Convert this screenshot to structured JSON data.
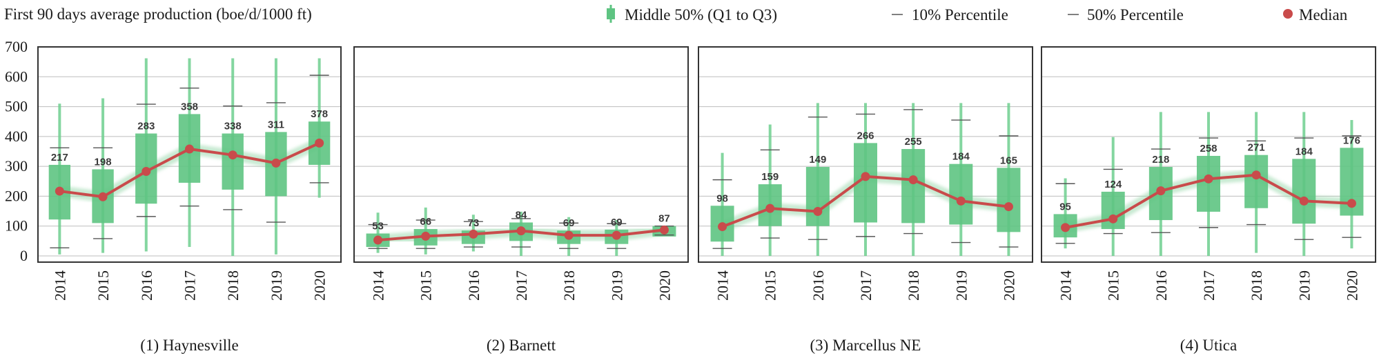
{
  "chart_data": {
    "type": "box",
    "title": "First 90 days average production (boe/d/1000 ft)",
    "ylim": [
      0,
      700
    ],
    "yticks": [
      0,
      100,
      200,
      300,
      400,
      500,
      600,
      700
    ],
    "grid": true,
    "legend_position": "top",
    "colors": {
      "box": "#5ec482",
      "whisker": "#6fcf8f",
      "median_line": "#c94b4b",
      "grid": "#bdbdbd",
      "tick": "#555555"
    },
    "legend": [
      {
        "label": "Middle 50% (Q1 to Q3)",
        "marker": "box-icon"
      },
      {
        "label": "10% Percentile",
        "marker": "dash-icon"
      },
      {
        "label": "50% Percentile",
        "marker": "dash-icon"
      },
      {
        "label": "Median",
        "marker": "dot-icon"
      }
    ],
    "panels": [
      {
        "title": "(1) Haynesville",
        "categories": [
          "2014",
          "2015",
          "2016",
          "2017",
          "2018",
          "2019",
          "2020"
        ],
        "q1": [
          122,
          110,
          175,
          245,
          222,
          200,
          305
        ],
        "q3": [
          305,
          290,
          410,
          475,
          410,
          415,
          450
        ],
        "min": [
          5,
          10,
          15,
          30,
          0,
          5,
          195
        ],
        "max": [
          510,
          528,
          662,
          662,
          662,
          662,
          662
        ],
        "p10": [
          27,
          58,
          132,
          167,
          155,
          113,
          245
        ],
        "p50": [
          362,
          362,
          508,
          562,
          502,
          513,
          605
        ],
        "median": [
          217,
          198,
          283,
          358,
          338,
          311,
          378
        ],
        "labels": [
          "217",
          "198",
          "283",
          "358",
          "338",
          "311",
          "378"
        ]
      },
      {
        "title": "(2) Barnett",
        "categories": [
          "2014",
          "2015",
          "2016",
          "2017",
          "2018",
          "2019",
          "2020"
        ],
        "q1": [
          30,
          35,
          40,
          50,
          40,
          40,
          65
        ],
        "q3": [
          75,
          90,
          85,
          112,
          85,
          88,
          100
        ],
        "min": [
          10,
          5,
          15,
          0,
          0,
          0,
          70
        ],
        "max": [
          145,
          162,
          138,
          148,
          130,
          120,
          100
        ],
        "p10": [
          25,
          25,
          30,
          30,
          25,
          25,
          70
        ],
        "p50": [
          105,
          120,
          115,
          125,
          110,
          108,
          100
        ],
        "median": [
          53,
          66,
          73,
          84,
          69,
          69,
          87
        ],
        "labels": [
          "53",
          "66",
          "73",
          "84",
          "69",
          "69",
          "87"
        ]
      },
      {
        "title": "(3) Marcellus NE",
        "categories": [
          "2014",
          "2015",
          "2016",
          "2017",
          "2018",
          "2019",
          "2020"
        ],
        "q1": [
          48,
          100,
          100,
          112,
          110,
          105,
          80
        ],
        "q3": [
          168,
          240,
          298,
          378,
          358,
          308,
          295
        ],
        "min": [
          0,
          0,
          0,
          0,
          0,
          0,
          0
        ],
        "max": [
          345,
          440,
          512,
          512,
          512,
          512,
          512
        ],
        "p10": [
          25,
          60,
          55,
          65,
          75,
          45,
          30
        ],
        "p50": [
          255,
          355,
          465,
          475,
          490,
          455,
          402
        ],
        "median": [
          98,
          159,
          149,
          266,
          255,
          184,
          165
        ],
        "labels": [
          "98",
          "159",
          "149",
          "266",
          "255",
          "184",
          "165"
        ]
      },
      {
        "title": "(4) Utica",
        "categories": [
          "2014",
          "2015",
          "2016",
          "2017",
          "2018",
          "2019",
          "2020"
        ],
        "q1": [
          62,
          90,
          120,
          148,
          160,
          108,
          135
        ],
        "q3": [
          140,
          215,
          298,
          335,
          338,
          325,
          362
        ],
        "min": [
          25,
          0,
          0,
          0,
          10,
          0,
          25
        ],
        "max": [
          260,
          398,
          482,
          482,
          482,
          482,
          455
        ],
        "p10": [
          42,
          75,
          78,
          95,
          105,
          55,
          62
        ],
        "p50": [
          242,
          290,
          358,
          395,
          385,
          395,
          402
        ],
        "median": [
          95,
          124,
          218,
          258,
          271,
          184,
          176
        ],
        "labels": [
          "95",
          "124",
          "218",
          "258",
          "271",
          "184",
          "176"
        ]
      }
    ]
  }
}
